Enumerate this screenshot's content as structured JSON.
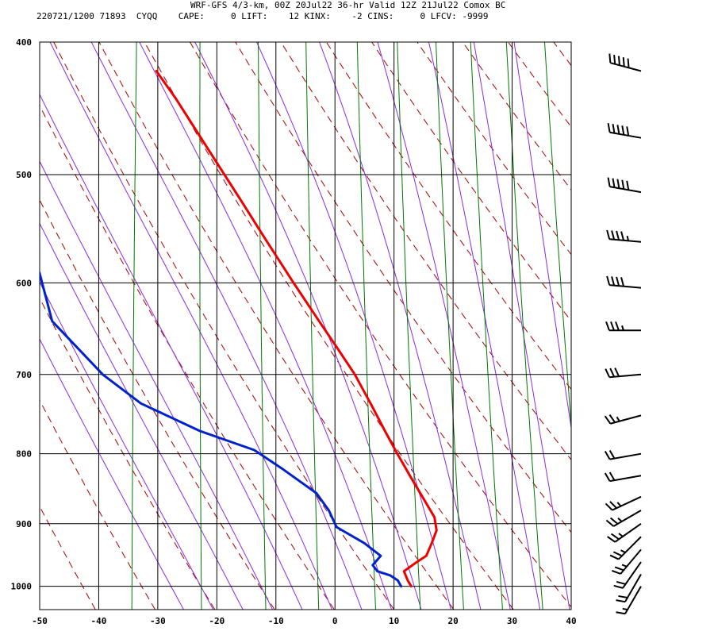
{
  "header": {
    "line1": "WRF-GFS 4/3-km, 00Z 20Jul22 36-hr Valid 12Z 21Jul22 Comox BC",
    "line2": "220721/1200 71893  CYQQ    CAPE:     0 LIFT:    12 KINX:    -2 CINS:     0 LFCV: -9999"
  },
  "chart_data": {
    "type": "line",
    "title": "WRF-GFS 4/3-km, 00Z 20Jul22 36-hr Valid 12Z 21Jul22 Comox BC",
    "subtitle": "220721/1200 71893  CYQQ    CAPE:     0 LIFT:    12 KINX:    -2 CINS:     0 LFCV: -9999",
    "xlabel": "",
    "ylabel": "",
    "x_scale": "skewed temperature",
    "y_scale": "log",
    "xlim": [
      -50,
      40
    ],
    "ylim": [
      1040,
      400
    ],
    "grid": true,
    "x_ticks": [
      -50,
      -40,
      -30,
      -20,
      -10,
      0,
      10,
      20,
      30,
      40
    ],
    "y_ticks": [
      400,
      500,
      600,
      700,
      800,
      900,
      1000
    ],
    "colors": {
      "temperature": "#ee0000",
      "dewpoint": "#0022cc",
      "dry_adiabat": "#aa0000",
      "moist_adiabat": "#8a2be2",
      "mixing_ratio": "#007700",
      "grid": "#000000",
      "wind": "#000000"
    },
    "series": [
      {
        "key": "temperature",
        "points": [
          [
            1000,
            12.5
          ],
          [
            990,
            11.8
          ],
          [
            975,
            11.0
          ],
          [
            960,
            13.0
          ],
          [
            950,
            14.5
          ],
          [
            930,
            15.2
          ],
          [
            910,
            15.8
          ],
          [
            890,
            15.2
          ],
          [
            860,
            12.8
          ],
          [
            830,
            10.3
          ],
          [
            800,
            7.8
          ],
          [
            770,
            5.3
          ],
          [
            740,
            2.8
          ],
          [
            700,
            -0.8
          ],
          [
            670,
            -4.2
          ],
          [
            640,
            -7.8
          ],
          [
            600,
            -12.8
          ],
          [
            560,
            -18.0
          ],
          [
            520,
            -23.5
          ],
          [
            480,
            -29.5
          ],
          [
            440,
            -36.0
          ],
          [
            420,
            -39.8
          ]
        ]
      },
      {
        "key": "dewpoint",
        "points": [
          [
            1000,
            10.8
          ],
          [
            990,
            10.1
          ],
          [
            982,
            8.8
          ],
          [
            975,
            6.5
          ],
          [
            965,
            5.6
          ],
          [
            950,
            6.8
          ],
          [
            930,
            3.8
          ],
          [
            905,
            -1.2
          ],
          [
            880,
            -2.8
          ],
          [
            855,
            -5.2
          ],
          [
            820,
            -11.5
          ],
          [
            795,
            -16.5
          ],
          [
            770,
            -26.0
          ],
          [
            735,
            -36.5
          ],
          [
            700,
            -43.5
          ],
          [
            640,
            -53.0
          ],
          [
            590,
            -56.0
          ],
          [
            540,
            -60.5
          ],
          [
            500,
            -63.5
          ],
          [
            470,
            -66.5
          ],
          [
            445,
            -70.5
          ],
          [
            420,
            -74.0
          ]
        ]
      }
    ],
    "wind_barbs": [
      {
        "p": 420,
        "dir": 285,
        "spd": 50
      },
      {
        "p": 470,
        "dir": 280,
        "spd": 50
      },
      {
        "p": 515,
        "dir": 280,
        "spd": 50
      },
      {
        "p": 560,
        "dir": 275,
        "spd": 45
      },
      {
        "p": 605,
        "dir": 275,
        "spd": 40
      },
      {
        "p": 650,
        "dir": 270,
        "spd": 35
      },
      {
        "p": 700,
        "dir": 265,
        "spd": 30
      },
      {
        "p": 750,
        "dir": 255,
        "spd": 25
      },
      {
        "p": 800,
        "dir": 260,
        "spd": 20
      },
      {
        "p": 830,
        "dir": 260,
        "spd": 20
      },
      {
        "p": 860,
        "dir": 245,
        "spd": 25
      },
      {
        "p": 880,
        "dir": 240,
        "spd": 25
      },
      {
        "p": 900,
        "dir": 235,
        "spd": 25
      },
      {
        "p": 920,
        "dir": 225,
        "spd": 25
      },
      {
        "p": 940,
        "dir": 220,
        "spd": 25
      },
      {
        "p": 960,
        "dir": 215,
        "spd": 20
      },
      {
        "p": 980,
        "dir": 210,
        "spd": 20
      },
      {
        "p": 1000,
        "dir": 210,
        "spd": 15
      }
    ]
  }
}
